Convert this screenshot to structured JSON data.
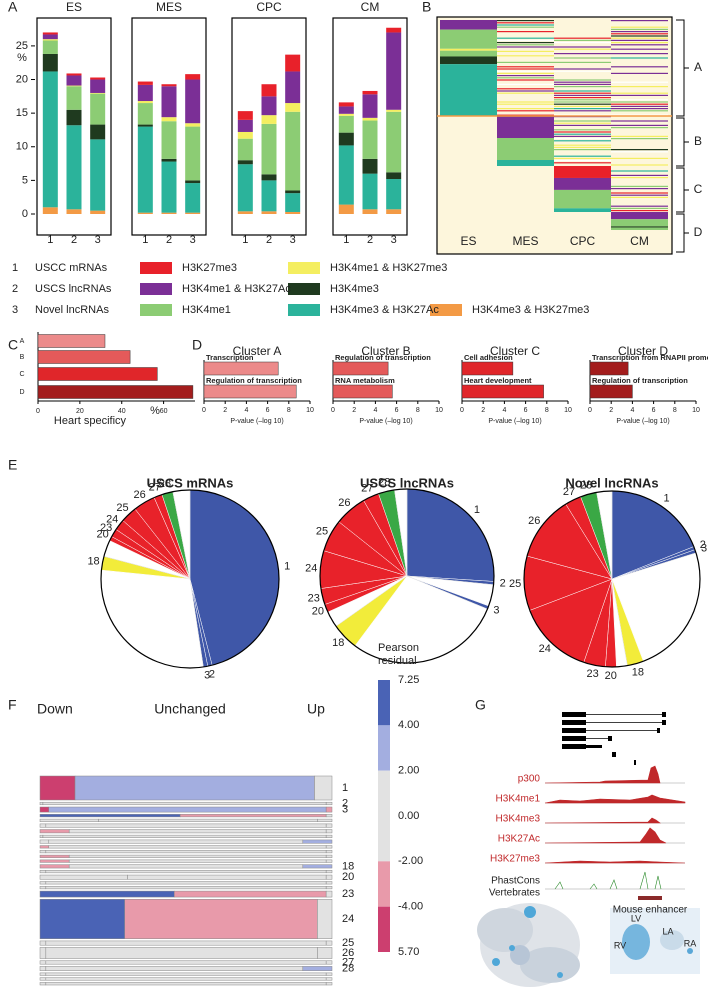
{
  "panel_labels": [
    "A",
    "B",
    "C",
    "D",
    "E",
    "F",
    "G"
  ],
  "chart_data": [
    {
      "type": "stacked-bar",
      "ylabel": "%",
      "ylim": [
        0,
        29
      ],
      "yticks": [
        0,
        5,
        10,
        15,
        20,
        25
      ],
      "categories": [
        "1",
        "2",
        "3"
      ],
      "category_names": [
        "USCC mRNAs",
        "USCS lncRNAs",
        "Novel lncRNAs"
      ],
      "series": [
        {
          "name": "H3K4me3 & H3K27me3",
          "color": "#f39a45"
        },
        {
          "name": "H3K4me3 & H3K27Ac",
          "color": "#2bb39b"
        },
        {
          "name": "H3K4me3",
          "color": "#1f3a1f"
        },
        {
          "name": "H3K4me1",
          "color": "#8ccc74"
        },
        {
          "name": "H3K4me1 & H3K27me3",
          "color": "#f4ee60"
        },
        {
          "name": "H3K4me1 & H3K27Ac",
          "color": "#7b2f96"
        },
        {
          "name": "H3K27me3",
          "color": "#e8212a"
        }
      ],
      "facets": [
        {
          "title": "ES",
          "values": [
            [
              1,
              0.7,
              0.5
            ],
            [
              20.2,
              12.5,
              10.6
            ],
            [
              2.6,
              2.3,
              2.2
            ],
            [
              2,
              3.5,
              4.6
            ],
            [
              0.2,
              0.1,
              0.1
            ],
            [
              0.7,
              1.5,
              2.0
            ],
            [
              0.3,
              0.3,
              0.3
            ]
          ]
        },
        {
          "title": "MES",
          "values": [
            [
              0.2,
              0.2,
              0.2
            ],
            [
              12.8,
              7.6,
              4.4
            ],
            [
              0.3,
              0.4,
              0.4
            ],
            [
              3.2,
              5.6,
              8
            ],
            [
              0.3,
              0.6,
              0.5
            ],
            [
              2.4,
              4.6,
              6.5
            ],
            [
              0.5,
              0.3,
              0.8
            ]
          ]
        },
        {
          "title": "CPC",
          "values": [
            [
              0.4,
              0.4,
              0.3
            ],
            [
              7,
              4.6,
              2.8
            ],
            [
              0.6,
              0.9,
              0.4
            ],
            [
              3.2,
              7.5,
              11.7
            ],
            [
              1,
              1.3,
              1.3
            ],
            [
              1.8,
              2.8,
              4.7
            ],
            [
              1.3,
              1.8,
              2.5
            ]
          ]
        },
        {
          "title": "CM",
          "values": [
            [
              1.4,
              0.7,
              0.7
            ],
            [
              8.8,
              5.3,
              4.5
            ],
            [
              1.9,
              2.2,
              1
            ],
            [
              2.5,
              5.7,
              9
            ],
            [
              0.3,
              0.4,
              0.3
            ],
            [
              1.1,
              3.5,
              11.5
            ],
            [
              0.6,
              0.5,
              0.7
            ]
          ]
        }
      ]
    },
    {
      "type": "heatmap",
      "columns": [
        "ES",
        "MES",
        "CPC",
        "CM"
      ],
      "clusters": [
        "A",
        "B",
        "C",
        "D"
      ]
    },
    {
      "type": "hbar",
      "categories": [
        "A",
        "B",
        "C",
        "D"
      ],
      "values": [
        32,
        44,
        57,
        74
      ],
      "colors": [
        "#ec8a8a",
        "#e45a5a",
        "#e0262a",
        "#a31d1d"
      ],
      "xlim": [
        0,
        75
      ],
      "xticks": [
        0,
        20,
        40,
        60
      ],
      "xlabel": "Heart specificy",
      "xunit": "%"
    },
    {
      "type": "hbar-facets",
      "xlim": [
        0,
        10
      ],
      "xticks": [
        0,
        2,
        4,
        6,
        8,
        10
      ],
      "xlabel": "P-value (–log 10)",
      "facets": [
        {
          "title": "Cluster A",
          "color": "#ec8a8a",
          "categories": [
            "Transcription",
            "Regulation of transcription"
          ],
          "values": [
            7,
            8.7
          ]
        },
        {
          "title": "Cluster B",
          "color": "#e45a5a",
          "categories": [
            "Regulation of transcription",
            "RNA metabolism"
          ],
          "values": [
            5.2,
            5.6
          ]
        },
        {
          "title": "Cluster C",
          "color": "#e0262a",
          "categories": [
            "Cell adhesion",
            "Heart development"
          ],
          "values": [
            4.8,
            7.7
          ]
        },
        {
          "title": "Cluster D",
          "color": "#a31d1d",
          "categories": [
            "Transcription from RNAPII promoters",
            "Regulation of transcription"
          ],
          "values": [
            3.6,
            4
          ]
        }
      ]
    },
    {
      "type": "pie",
      "facets": [
        {
          "title": "USCS mRNAs",
          "labels": [
            "1",
            "2",
            "3",
            null,
            "18",
            null,
            "20",
            "23",
            "24",
            "25",
            "26",
            "27",
            "28",
            null
          ],
          "values": [
            46,
            0.8,
            0.8,
            29,
            2.5,
            3,
            0.8,
            1.5,
            2,
            3,
            4,
            1.5,
            2,
            3.1
          ],
          "colors": [
            "#3f57a8",
            "#3f57a8",
            "#3f57a8",
            "#ffffff",
            "#f2ec3a",
            "#ffffff",
            "#e8222a",
            "#e8222a",
            "#e8222a",
            "#e8222a",
            "#e8222a",
            "#e8222a",
            "#3aa845",
            "#ffffff"
          ]
        },
        {
          "title": "USCS lncRNAs",
          "labels": [
            "1",
            "2",
            null,
            "3",
            null,
            "18",
            null,
            "20",
            "23",
            "24",
            "25",
            "26",
            "27",
            "28",
            null
          ],
          "values": [
            26,
            0.6,
            4,
            0.6,
            29,
            5,
            3,
            1.5,
            3,
            7,
            6,
            6,
            3,
            3,
            2.3
          ],
          "colors": [
            "#3f57a8",
            "#3f57a8",
            "#ffffff",
            "#3f57a8",
            "#ffffff",
            "#f2ec3a",
            "#ffffff",
            "#e8222a",
            "#e8222a",
            "#e8222a",
            "#e8222a",
            "#e8222a",
            "#e8222a",
            "#3aa845",
            "#ffffff"
          ]
        },
        {
          "title": "Novel lncRNAs",
          "labels": [
            "1",
            "2",
            "3",
            null,
            "18",
            null,
            "20",
            "23",
            "24",
            "25",
            "26",
            "27",
            "28",
            null
          ],
          "values": [
            19,
            0.6,
            0.6,
            24,
            3,
            2,
            2,
            4,
            14,
            10,
            12,
            3,
            3,
            2.8
          ],
          "colors": [
            "#3f57a8",
            "#3f57a8",
            "#3f57a8",
            "#ffffff",
            "#f2ec3a",
            "#ffffff",
            "#e8222a",
            "#e8222a",
            "#e8222a",
            "#e8222a",
            "#e8222a",
            "#e8222a",
            "#3aa845",
            "#ffffff"
          ]
        }
      ]
    },
    {
      "type": "mosaic",
      "columns": [
        "Down",
        "Unchanged",
        "Up"
      ],
      "rows": [
        {
          "label": "1",
          "size": 28,
          "values": [
            12,
            82,
            6
          ],
          "colors": [
            "#cc3f6f",
            "#a3aee0",
            "#e2e2e2"
          ]
        },
        {
          "label": "2",
          "size": 3,
          "values": [
            1,
            97,
            2
          ],
          "colors": [
            "#e2e2e2",
            "#e2e2e2",
            "#e2e2e2"
          ]
        },
        {
          "label": "3",
          "size": 6,
          "values": [
            3,
            95,
            2
          ],
          "colors": [
            "#cc3f6f",
            "#a3aee0",
            "#e89aaa"
          ]
        },
        {
          "label": null,
          "size": 3,
          "values": [
            48,
            50,
            2
          ],
          "colors": [
            "#4a63b5",
            "#e89aaa",
            "#e2e2e2"
          ]
        },
        {
          "label": null,
          "size": 3,
          "values": [
            20,
            75,
            5
          ],
          "colors": [
            "#e2e2e2",
            "#e2e2e2",
            "#e2e2e2"
          ]
        },
        {
          "label": null,
          "size": 4,
          "values": [
            2,
            96,
            2
          ],
          "colors": [
            "#e2e2e2",
            "#e2e2e2",
            "#e2e2e2"
          ]
        },
        {
          "label": null,
          "size": 4,
          "values": [
            10,
            88,
            2
          ],
          "colors": [
            "#e89aaa",
            "#e2e2e2",
            "#e2e2e2"
          ]
        },
        {
          "label": null,
          "size": 3,
          "values": [
            1,
            97,
            2
          ],
          "colors": [
            "#e2e2e2",
            "#e2e2e2",
            "#e2e2e2"
          ]
        },
        {
          "label": null,
          "size": 4,
          "values": [
            3,
            87,
            10
          ],
          "colors": [
            "#e2e2e2",
            "#e2e2e2",
            "#a3aee0"
          ]
        },
        {
          "label": null,
          "size": 3,
          "values": [
            3,
            95,
            2
          ],
          "colors": [
            "#e89aaa",
            "#e2e2e2",
            "#e2e2e2"
          ]
        },
        {
          "label": null,
          "size": 3,
          "values": [
            2,
            96,
            2
          ],
          "colors": [
            "#e2e2e2",
            "#e2e2e2",
            "#e2e2e2"
          ]
        },
        {
          "label": null,
          "size": 3,
          "values": [
            10,
            88,
            2
          ],
          "colors": [
            "#e89aaa",
            "#e2e2e2",
            "#e2e2e2"
          ]
        },
        {
          "label": null,
          "size": 3,
          "values": [
            10,
            88,
            2
          ],
          "colors": [
            "#e89aaa",
            "#e2e2e2",
            "#e2e2e2"
          ]
        },
        {
          "label": "18",
          "size": 4,
          "values": [
            10,
            80,
            10
          ],
          "colors": [
            "#e89aaa",
            "#e2e2e2",
            "#a3aee0"
          ]
        },
        {
          "label": null,
          "size": 3,
          "values": [
            2,
            96,
            2
          ],
          "colors": [
            "#e2e2e2",
            "#e2e2e2",
            "#e2e2e2"
          ]
        },
        {
          "label": "20",
          "size": 5,
          "values": [
            30,
            68,
            2
          ],
          "colors": [
            "#e2e2e2",
            "#e2e2e2",
            "#e2e2e2"
          ]
        },
        {
          "label": null,
          "size": 3,
          "values": [
            2,
            96,
            2
          ],
          "colors": [
            "#e2e2e2",
            "#e2e2e2",
            "#e2e2e2"
          ]
        },
        {
          "label": null,
          "size": 3,
          "values": [
            2,
            96,
            2
          ],
          "colors": [
            "#e2e2e2",
            "#e2e2e2",
            "#e2e2e2"
          ]
        },
        {
          "label": "23",
          "size": 7,
          "values": [
            46,
            52,
            2
          ],
          "colors": [
            "#4a63b5",
            "#e89aaa",
            "#e2e2e2"
          ]
        },
        {
          "label": "24",
          "size": 46,
          "values": [
            29,
            66,
            5
          ],
          "colors": [
            "#4a63b5",
            "#e89aaa",
            "#e2e2e2"
          ]
        },
        {
          "label": "25",
          "size": 5,
          "values": [
            2,
            96,
            2
          ],
          "colors": [
            "#e2e2e2",
            "#e2e2e2",
            "#e2e2e2"
          ]
        },
        {
          "label": "26",
          "size": 13,
          "values": [
            2,
            93,
            5
          ],
          "colors": [
            "#e2e2e2",
            "#e2e2e2",
            "#e2e2e2"
          ]
        },
        {
          "label": "27",
          "size": 4,
          "values": [
            2,
            96,
            2
          ],
          "colors": [
            "#e2e2e2",
            "#e2e2e2",
            "#e2e2e2"
          ]
        },
        {
          "label": "28",
          "size": 5,
          "values": [
            2,
            88,
            10
          ],
          "colors": [
            "#e2e2e2",
            "#e2e2e2",
            "#a3aee0"
          ]
        },
        {
          "label": null,
          "size": 3,
          "values": [
            2,
            96,
            2
          ],
          "colors": [
            "#e2e2e2",
            "#e2e2e2",
            "#e2e2e2"
          ]
        },
        {
          "label": null,
          "size": 3,
          "values": [
            2,
            96,
            2
          ],
          "colors": [
            "#e2e2e2",
            "#e2e2e2",
            "#e2e2e2"
          ]
        },
        {
          "label": null,
          "size": 3,
          "values": [
            2,
            96,
            2
          ],
          "colors": [
            "#e2e2e2",
            "#e2e2e2",
            "#e2e2e2"
          ]
        }
      ],
      "legend": {
        "title_lines": [
          "Pearson",
          "residual"
        ],
        "ticks": [
          "7.25",
          "4.00",
          "2.00",
          "0.00",
          "-2.00",
          "-4.00",
          "5.70"
        ],
        "colors": [
          "#4a63b5",
          "#a3aee0",
          "#e2e2e2",
          "#e2e2e2",
          "#e89aaa",
          "#cc3f6f"
        ]
      }
    }
  ],
  "genome_browser": {
    "tracks": [
      "p300",
      "H3K4me1",
      "H3K4me3",
      "H3K27Ac",
      "H3K27me3"
    ],
    "conservation_lines": [
      "PhastCons",
      "Vertebrates"
    ],
    "enhancer": "Mouse enhancer",
    "heart_labels": [
      "LV",
      "LA",
      "RA",
      "RV"
    ]
  }
}
